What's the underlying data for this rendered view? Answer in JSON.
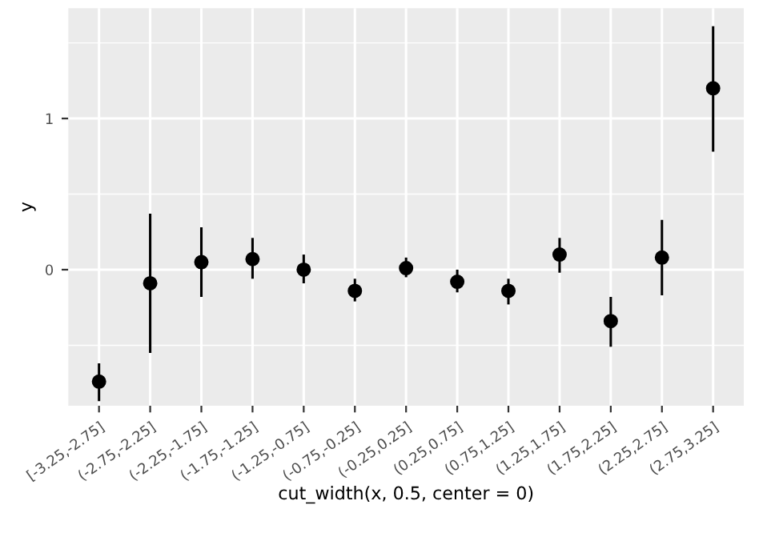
{
  "chart_data": {
    "type": "scatter",
    "xlabel": "cut_width(x, 0.5, center = 0)",
    "ylabel": "y",
    "categories": [
      "[-3.25,-2.75]",
      "(-2.75,-2.25]",
      "(-2.25,-1.75]",
      "(-1.75,-1.25]",
      "(-1.25,-0.75]",
      "(-0.75,-0.25]",
      "(-0.25,0.25]",
      "(0.25,0.75]",
      "(0.75,1.25]",
      "(1.25,1.75]",
      "(1.75,2.25]",
      "(2.25,2.75]",
      "(2.75,3.25]"
    ],
    "series": [
      {
        "color": "#000000",
        "values": [
          -0.74,
          -0.09,
          0.05,
          0.07,
          0.0,
          -0.14,
          0.01,
          -0.08,
          -0.14,
          0.1,
          -0.34,
          0.08,
          1.2
        ],
        "errors": [
          [
            -0.87,
            -0.62
          ],
          [
            -0.55,
            0.37
          ],
          [
            -0.18,
            0.28
          ],
          [
            -0.06,
            0.21
          ],
          [
            -0.09,
            0.1
          ],
          [
            -0.21,
            -0.06
          ],
          [
            -0.05,
            0.08
          ],
          [
            -0.15,
            0.0
          ],
          [
            -0.23,
            -0.06
          ],
          [
            -0.02,
            0.21
          ],
          [
            -0.51,
            -0.18
          ],
          [
            -0.17,
            0.33
          ],
          [
            0.78,
            1.61
          ]
        ]
      }
    ],
    "ylim": [
      -0.9,
      1.73
    ],
    "yticks": [
      {
        "value": -0.5,
        "label": null
      },
      0,
      {
        "value": 0.5,
        "label": null
      },
      1,
      {
        "value": 1.5,
        "label": null
      }
    ],
    "grid": true,
    "marker": "circle"
  }
}
